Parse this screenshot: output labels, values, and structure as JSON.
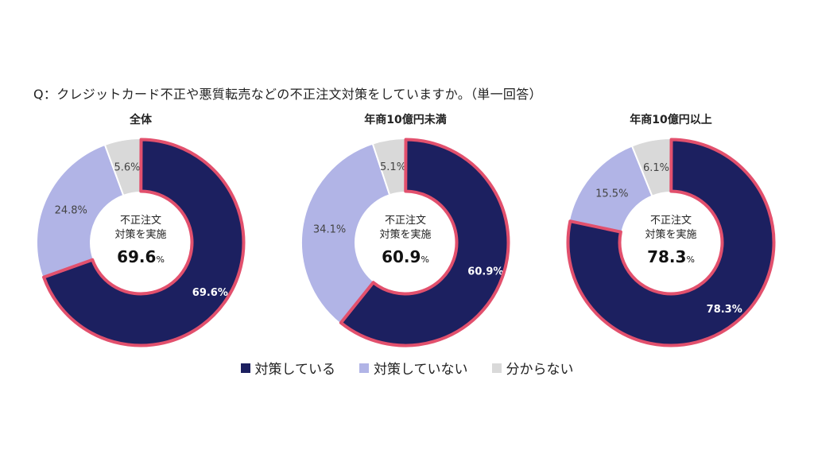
{
  "question": "Q：クレジットカード不正や悪質転売などの不正注文対策をしていますか。（単一回答）",
  "center_label_line1": "不正注文",
  "center_label_line2": "対策を実施",
  "percent_sign": "%",
  "colors": {
    "implemented": "#1c2060",
    "not_implemented": "#b1b4e6",
    "unknown": "#d9d9d9",
    "highlight": "#e2506d"
  },
  "chart_data": [
    {
      "type": "pie",
      "donut": true,
      "title": "全体",
      "categories": [
        "対策している",
        "対策していない",
        "分からない"
      ],
      "values": [
        69.6,
        24.8,
        5.6
      ],
      "labels": [
        "69.6%",
        "24.8%",
        "5.6%"
      ],
      "center_value": "69.6"
    },
    {
      "type": "pie",
      "donut": true,
      "title": "年商10億円未満",
      "categories": [
        "対策している",
        "対策していない",
        "分からない"
      ],
      "values": [
        60.9,
        34.1,
        5.1
      ],
      "labels": [
        "60.9%",
        "34.1%",
        "5.1%"
      ],
      "center_value": "60.9"
    },
    {
      "type": "pie",
      "donut": true,
      "title": "年商10億円以上",
      "categories": [
        "対策している",
        "対策していない",
        "分からない"
      ],
      "values": [
        78.3,
        15.5,
        6.1
      ],
      "labels": [
        "78.3%",
        "15.5%",
        "6.1%"
      ],
      "center_value": "78.3"
    }
  ],
  "legend": [
    {
      "label": "対策している",
      "key": "implemented"
    },
    {
      "label": "対策していない",
      "key": "not_implemented"
    },
    {
      "label": "分からない",
      "key": "unknown"
    }
  ]
}
